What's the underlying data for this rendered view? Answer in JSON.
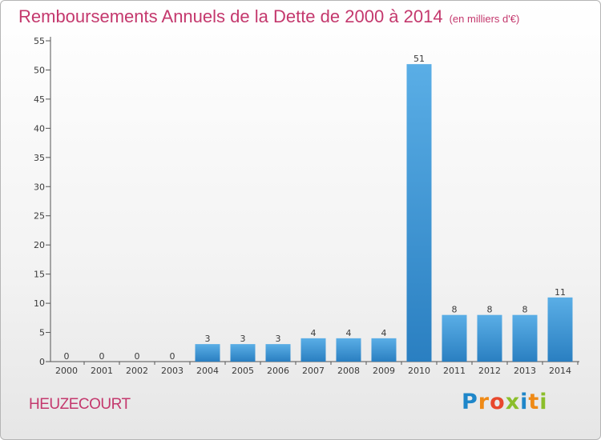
{
  "chart_title": "Remboursements Annuels de la Dette de 2000 à 2014",
  "chart_subtitle": "(en milliers d'€)",
  "commune": "HEUZECOURT",
  "logo": {
    "letters": [
      "P",
      "r",
      "o",
      "x",
      "i",
      "t",
      "i"
    ]
  },
  "colors": {
    "title": "#c4386d",
    "bar_light": "#5aaee6",
    "bar_dark": "#2a7fc1",
    "axis": "#555555"
  },
  "chart_data": {
    "type": "bar",
    "title": "Remboursements Annuels de la Dette de 2000 à 2014",
    "subtitle": "(en milliers d'€)",
    "xlabel": "",
    "ylabel": "",
    "categories": [
      "2000",
      "2001",
      "2002",
      "2003",
      "2004",
      "2005",
      "2006",
      "2007",
      "2008",
      "2009",
      "2010",
      "2011",
      "2012",
      "2013",
      "2014"
    ],
    "values": [
      0,
      0,
      0,
      0,
      3,
      3,
      3,
      4,
      4,
      4,
      51,
      8,
      8,
      8,
      11
    ],
    "value_labels": [
      "0",
      "0",
      "0",
      "0",
      "3",
      "3",
      "3",
      "4",
      "4",
      "4",
      "51",
      "8",
      "8",
      "8",
      "11"
    ],
    "yticks": [
      "0",
      "5",
      "10",
      "15",
      "20",
      "25",
      "30",
      "35",
      "40",
      "45",
      "50",
      "55"
    ],
    "ylim": [
      0,
      55
    ],
    "grid": false,
    "legend": "none"
  }
}
